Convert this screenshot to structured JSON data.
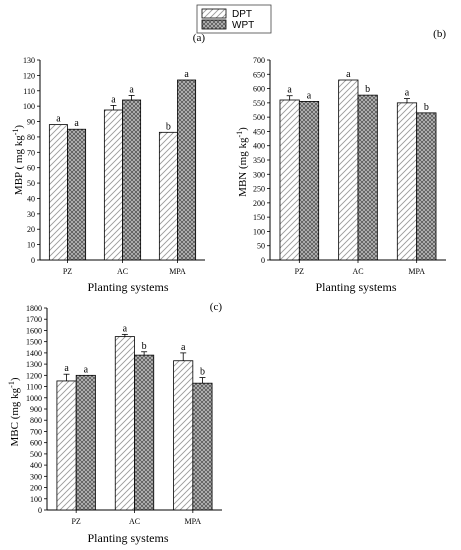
{
  "legend": {
    "entries": [
      {
        "label": "DPT",
        "pattern": "diagonal-hatch"
      },
      {
        "label": "WPT",
        "pattern": "crosshatch"
      }
    ]
  },
  "chart_data": [
    {
      "type": "bar",
      "panel_label": "(a)",
      "categories": [
        "PZ",
        "AC",
        "MPA"
      ],
      "series": [
        {
          "name": "DPT",
          "values": [
            88,
            97.5,
            83
          ],
          "errors": [
            0,
            3,
            0
          ],
          "letters": [
            "a",
            "a",
            "b"
          ]
        },
        {
          "name": "WPT",
          "values": [
            85,
            104,
            117
          ],
          "errors": [
            0,
            3,
            0
          ],
          "letters": [
            "a",
            "a",
            "a"
          ]
        }
      ],
      "xlabel": "Planting systems",
      "ylabel": "MBP ( mg kg",
      "ylabel_sup": "-1",
      "ylabel_end": ")",
      "ylim": [
        0,
        130
      ],
      "yticks": [
        0,
        10,
        20,
        30,
        40,
        50,
        60,
        70,
        80,
        90,
        100,
        110,
        120,
        130
      ]
    },
    {
      "type": "bar",
      "panel_label": "(b)",
      "categories": [
        "PZ",
        "AC",
        "MPA"
      ],
      "series": [
        {
          "name": "DPT",
          "values": [
            560,
            630,
            550
          ],
          "errors": [
            15,
            0,
            15
          ],
          "letters": [
            "a",
            "a",
            "a"
          ]
        },
        {
          "name": "WPT",
          "values": [
            555,
            577,
            515
          ],
          "errors": [
            0,
            0,
            0
          ],
          "letters": [
            "a",
            "b",
            "b"
          ]
        }
      ],
      "xlabel": "Planting systems",
      "ylabel": "MBN (mg kg",
      "ylabel_sup": "-1",
      "ylabel_end": ")",
      "ylim": [
        0,
        700
      ],
      "yticks": [
        0,
        50,
        100,
        150,
        200,
        250,
        300,
        350,
        400,
        450,
        500,
        550,
        600,
        650,
        700
      ]
    },
    {
      "type": "bar",
      "panel_label": "(c)",
      "categories": [
        "PZ",
        "AC",
        "MPA"
      ],
      "series": [
        {
          "name": "DPT",
          "values": [
            1150,
            1545,
            1330
          ],
          "errors": [
            60,
            20,
            70
          ],
          "letters": [
            "a",
            "a",
            "a"
          ]
        },
        {
          "name": "WPT",
          "values": [
            1200,
            1380,
            1130
          ],
          "errors": [
            0,
            30,
            50
          ],
          "letters": [
            "a",
            "b",
            "b"
          ]
        }
      ],
      "xlabel": "Planting systems",
      "ylabel": "MBC (mg kg",
      "ylabel_sup": "-1",
      "ylabel_end": ")",
      "ylim": [
        0,
        1800
      ],
      "yticks": [
        0,
        100,
        200,
        300,
        400,
        500,
        600,
        700,
        800,
        900,
        1000,
        1100,
        1200,
        1300,
        1400,
        1500,
        1600,
        1700,
        1800
      ]
    }
  ]
}
